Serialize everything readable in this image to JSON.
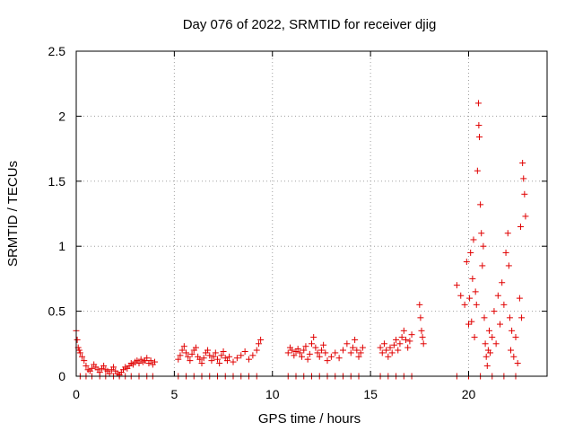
{
  "chart_data": {
    "type": "scatter",
    "title": "Day 076 of 2022, SRMTID for receiver djig",
    "xlabel": "GPS time / hours",
    "ylabel": "SRMTID / TECUs",
    "xlim": [
      0,
      24
    ],
    "ylim": [
      0,
      2.5
    ],
    "xticks": [
      0,
      5,
      10,
      15,
      20
    ],
    "xtick_labels": [
      "0",
      "5",
      "10",
      "15",
      "20"
    ],
    "yticks": [
      0,
      0.5,
      1,
      1.5,
      2,
      2.5
    ],
    "ytick_labels": [
      "0",
      "0.5",
      "1",
      "1.5",
      "2",
      "2.5"
    ],
    "grid": true,
    "marker": "plus",
    "series": [
      {
        "name": "SRMTID",
        "color": "#e00000",
        "x": [
          0.0,
          0.05,
          0.1,
          0.15,
          0.2,
          0.3,
          0.4,
          0.5,
          0.6,
          0.7,
          0.8,
          0.9,
          1.0,
          1.1,
          1.2,
          1.3,
          1.4,
          1.5,
          1.6,
          1.7,
          1.8,
          1.9,
          2.0,
          2.1,
          2.2,
          2.3,
          2.4,
          2.5,
          2.6,
          2.7,
          2.8,
          2.9,
          3.0,
          3.1,
          3.2,
          3.3,
          3.4,
          3.5,
          3.6,
          3.7,
          3.8,
          3.9,
          4.0,
          5.2,
          5.3,
          5.4,
          5.5,
          5.6,
          5.7,
          5.8,
          5.9,
          6.0,
          6.1,
          6.2,
          6.3,
          6.4,
          6.5,
          6.6,
          6.7,
          6.8,
          6.9,
          7.0,
          7.1,
          7.2,
          7.3,
          7.4,
          7.5,
          7.6,
          7.7,
          7.8,
          8.0,
          8.2,
          8.4,
          8.6,
          8.8,
          9.0,
          9.2,
          9.3,
          9.4,
          10.8,
          10.9,
          11.0,
          11.1,
          11.2,
          11.3,
          11.4,
          11.5,
          11.6,
          11.7,
          11.8,
          11.9,
          12.0,
          12.1,
          12.2,
          12.3,
          12.4,
          12.5,
          12.6,
          12.7,
          12.8,
          13.0,
          13.2,
          13.4,
          13.6,
          13.8,
          14.0,
          14.1,
          14.2,
          14.3,
          14.4,
          14.5,
          14.6,
          15.5,
          15.6,
          15.7,
          15.8,
          15.9,
          16.0,
          16.1,
          16.2,
          16.3,
          16.4,
          16.5,
          16.6,
          16.7,
          16.8,
          16.9,
          17.0,
          17.1,
          17.5,
          17.55,
          17.6,
          17.65,
          17.7,
          19.4,
          19.6,
          19.8,
          19.9,
          20.0,
          20.05,
          20.1,
          20.15,
          20.2,
          20.25,
          20.3,
          20.35,
          20.4,
          20.45,
          20.5,
          20.52,
          20.55,
          20.6,
          20.65,
          20.7,
          20.75,
          20.8,
          20.85,
          20.9,
          20.95,
          21.0,
          21.05,
          21.1,
          21.2,
          21.3,
          21.4,
          21.5,
          21.6,
          21.7,
          21.8,
          21.9,
          22.0,
          22.05,
          22.1,
          22.15,
          22.2,
          22.3,
          22.4,
          22.5,
          22.6,
          22.65,
          22.7,
          22.75,
          22.8,
          22.85,
          22.9
        ],
        "y": [
          0.35,
          0.28,
          0.22,
          0.2,
          0.18,
          0.15,
          0.12,
          0.08,
          0.05,
          0.04,
          0.06,
          0.09,
          0.07,
          0.05,
          0.03,
          0.06,
          0.08,
          0.05,
          0.04,
          0.02,
          0.05,
          0.07,
          0.04,
          0.02,
          0.01,
          0.03,
          0.05,
          0.07,
          0.06,
          0.08,
          0.1,
          0.09,
          0.11,
          0.12,
          0.1,
          0.13,
          0.11,
          0.12,
          0.14,
          0.1,
          0.12,
          0.09,
          0.11,
          0.13,
          0.16,
          0.2,
          0.23,
          0.18,
          0.15,
          0.12,
          0.17,
          0.2,
          0.22,
          0.15,
          0.13,
          0.1,
          0.14,
          0.18,
          0.2,
          0.16,
          0.12,
          0.15,
          0.18,
          0.13,
          0.1,
          0.16,
          0.19,
          0.14,
          0.12,
          0.15,
          0.11,
          0.14,
          0.16,
          0.19,
          0.13,
          0.16,
          0.2,
          0.25,
          0.28,
          0.18,
          0.22,
          0.2,
          0.16,
          0.19,
          0.21,
          0.18,
          0.15,
          0.2,
          0.23,
          0.13,
          0.17,
          0.25,
          0.3,
          0.22,
          0.18,
          0.15,
          0.2,
          0.24,
          0.18,
          0.12,
          0.15,
          0.18,
          0.14,
          0.2,
          0.25,
          0.18,
          0.22,
          0.28,
          0.2,
          0.15,
          0.18,
          0.22,
          0.22,
          0.18,
          0.25,
          0.2,
          0.15,
          0.22,
          0.18,
          0.24,
          0.28,
          0.2,
          0.25,
          0.3,
          0.35,
          0.28,
          0.22,
          0.27,
          0.32,
          0.55,
          0.45,
          0.35,
          0.3,
          0.25,
          0.7,
          0.62,
          0.55,
          0.88,
          0.4,
          0.6,
          0.95,
          0.42,
          0.75,
          1.05,
          0.3,
          0.65,
          0.55,
          1.58,
          2.1,
          1.93,
          1.84,
          1.32,
          1.1,
          0.85,
          1.0,
          0.45,
          0.25,
          0.15,
          0.08,
          0.2,
          0.35,
          0.18,
          0.3,
          0.5,
          0.25,
          0.62,
          0.4,
          0.72,
          0.55,
          0.95,
          1.1,
          0.85,
          0.45,
          0.2,
          0.35,
          0.15,
          0.3,
          0.1,
          0.6,
          1.15,
          0.45,
          1.64,
          1.52,
          1.4,
          1.23
        ]
      }
    ]
  },
  "rugs": {
    "markers_at_zero": [
      0.2,
      0.5,
      0.8,
      1.2,
      1.5,
      1.9,
      2.2,
      2.5,
      2.8,
      3.2,
      3.6,
      3.9,
      5.2,
      5.6,
      6.0,
      6.4,
      6.8,
      7.2,
      7.6,
      8.0,
      8.4,
      8.8,
      9.2,
      10.8,
      11.2,
      11.6,
      12.0,
      12.4,
      12.8,
      13.2,
      13.6,
      14.0,
      14.4,
      15.5,
      15.9,
      16.3,
      16.7,
      17.1,
      19.4,
      20.0,
      20.6,
      21.2,
      21.8,
      22.4
    ]
  }
}
